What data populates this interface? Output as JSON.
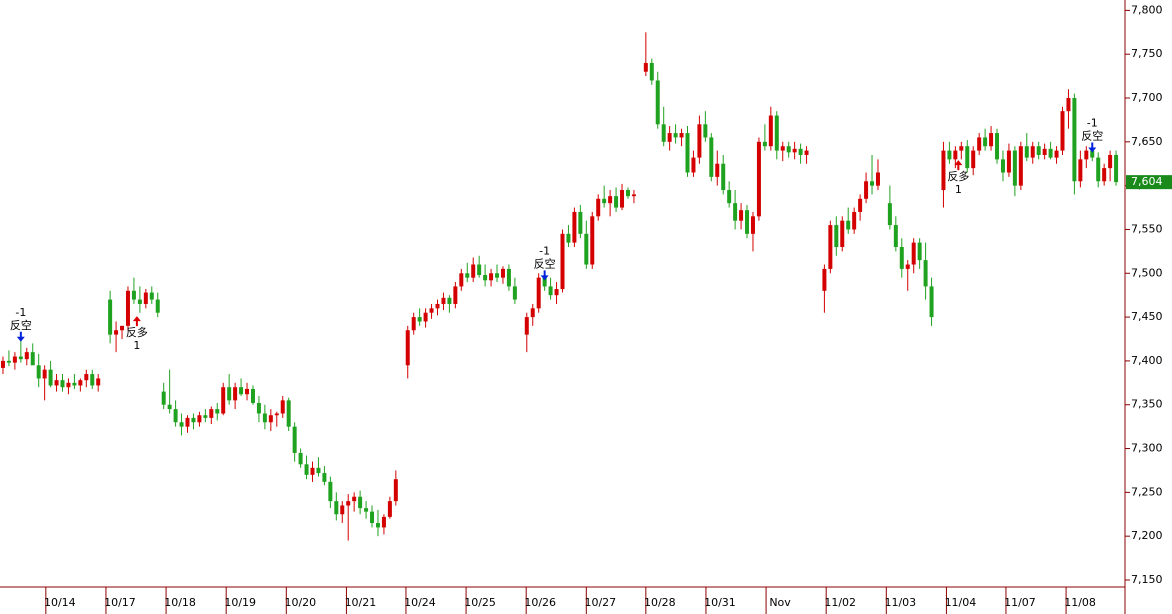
{
  "chart_data": {
    "type": "candlestick",
    "up_color": "#d40000",
    "down_color": "#1fa21f",
    "axis_color": "#8b0000",
    "last_color": "#1a8a1a",
    "ylim": [
      7142,
      7805
    ],
    "xlim": [
      -0.5,
      188.5
    ],
    "yticks": [
      {
        "value": 7150,
        "label": "7,150"
      },
      {
        "value": 7200,
        "label": "7,200"
      },
      {
        "value": 7250,
        "label": "7,250"
      },
      {
        "value": 7300,
        "label": "7,300"
      },
      {
        "value": 7350,
        "label": "7,350"
      },
      {
        "value": 7400,
        "label": "7,400"
      },
      {
        "value": 7450,
        "label": "7,450"
      },
      {
        "value": 7500,
        "label": "7,500"
      },
      {
        "value": 7550,
        "label": "7,550"
      },
      {
        "value": 7600,
        "label": "7,600"
      },
      {
        "value": 7650,
        "label": "7,650"
      },
      {
        "value": 7700,
        "label": "7,700"
      },
      {
        "value": 7750,
        "label": "7,750"
      },
      {
        "value": 7800,
        "label": "7,800"
      }
    ],
    "xticks": [
      {
        "value": 7.2,
        "label": "10/14"
      },
      {
        "value": 17.3,
        "label": "10/17"
      },
      {
        "value": 27.4,
        "label": "10/18"
      },
      {
        "value": 37.5,
        "label": "10/19"
      },
      {
        "value": 47.6,
        "label": "10/20"
      },
      {
        "value": 57.7,
        "label": "10/21"
      },
      {
        "value": 67.7,
        "label": "10/24"
      },
      {
        "value": 77.8,
        "label": "10/25"
      },
      {
        "value": 87.9,
        "label": "10/26"
      },
      {
        "value": 98,
        "label": "10/27"
      },
      {
        "value": 108,
        "label": "10/28"
      },
      {
        "value": 118.1,
        "label": "10/31"
      },
      {
        "value": 128.2,
        "label": "Nov"
      },
      {
        "value": 138.3,
        "label": "11/02"
      },
      {
        "value": 148.4,
        "label": "11/03"
      },
      {
        "value": 158.5,
        "label": "11/04"
      },
      {
        "value": 168.5,
        "label": "11/07"
      },
      {
        "value": 178.6,
        "label": "11/08"
      }
    ],
    "last": {
      "value": 7604,
      "label": "7,604"
    },
    "signals": [
      {
        "x": 3,
        "at": 7423,
        "dir": "short",
        "label": "-1",
        "text": "反空"
      },
      {
        "x": 22.5,
        "at": 7450,
        "dir": "long",
        "label": "1",
        "text": "反多"
      },
      {
        "x": 91,
        "at": 7493,
        "dir": "short",
        "label": "-1",
        "text": "反空"
      },
      {
        "x": 160.5,
        "at": 7628,
        "dir": "long",
        "label": "1",
        "text": "反多"
      },
      {
        "x": 183,
        "at": 7639,
        "dir": "short",
        "label": "-1",
        "text": "反空"
      }
    ],
    "candles": [
      [
        0,
        7392,
        7405,
        7385,
        7400
      ],
      [
        1,
        7400,
        7412,
        7394,
        7398
      ],
      [
        2,
        7398,
        7410,
        7390,
        7405
      ],
      [
        3,
        7405,
        7425,
        7398,
        7402
      ],
      [
        4,
        7402,
        7415,
        7395,
        7410
      ],
      [
        5,
        7410,
        7420,
        7400,
        7395
      ],
      [
        6,
        7395,
        7408,
        7370,
        7380
      ],
      [
        7,
        7380,
        7395,
        7355,
        7390
      ],
      [
        8,
        7390,
        7400,
        7370,
        7372
      ],
      [
        9,
        7372,
        7385,
        7365,
        7378
      ],
      [
        10,
        7378,
        7385,
        7365,
        7370
      ],
      [
        11,
        7370,
        7380,
        7362,
        7375
      ],
      [
        12,
        7375,
        7385,
        7368,
        7372
      ],
      [
        13,
        7372,
        7380,
        7365,
        7378
      ],
      [
        14,
        7378,
        7390,
        7370,
        7385
      ],
      [
        15,
        7385,
        7390,
        7368,
        7372
      ],
      [
        16,
        7372,
        7385,
        7365,
        7380
      ],
      [
        18,
        7470,
        7480,
        7420,
        7430
      ],
      [
        19,
        7430,
        7445,
        7410,
        7435
      ],
      [
        20,
        7435,
        7440,
        7425,
        7440
      ],
      [
        21,
        7440,
        7485,
        7435,
        7480
      ],
      [
        22,
        7480,
        7495,
        7465,
        7470
      ],
      [
        23,
        7470,
        7485,
        7455,
        7465
      ],
      [
        24,
        7465,
        7482,
        7460,
        7478
      ],
      [
        25,
        7478,
        7485,
        7465,
        7470
      ],
      [
        26,
        7470,
        7478,
        7450,
        7455
      ],
      [
        27,
        7365,
        7375,
        7345,
        7350
      ],
      [
        28,
        7350,
        7390,
        7340,
        7345
      ],
      [
        29,
        7345,
        7355,
        7325,
        7330
      ],
      [
        30,
        7330,
        7340,
        7315,
        7325
      ],
      [
        31,
        7325,
        7338,
        7318,
        7335
      ],
      [
        32,
        7335,
        7340,
        7322,
        7330
      ],
      [
        33,
        7330,
        7342,
        7325,
        7338
      ],
      [
        34,
        7338,
        7345,
        7330,
        7335
      ],
      [
        35,
        7335,
        7348,
        7328,
        7345
      ],
      [
        36,
        7345,
        7352,
        7332,
        7340
      ],
      [
        37,
        7340,
        7375,
        7338,
        7370
      ],
      [
        38,
        7370,
        7385,
        7350,
        7355
      ],
      [
        39,
        7355,
        7375,
        7345,
        7370
      ],
      [
        40,
        7370,
        7380,
        7360,
        7362
      ],
      [
        41,
        7362,
        7375,
        7355,
        7368
      ],
      [
        42,
        7368,
        7372,
        7350,
        7352
      ],
      [
        43,
        7352,
        7360,
        7330,
        7340
      ],
      [
        44,
        7340,
        7350,
        7322,
        7330
      ],
      [
        45,
        7330,
        7345,
        7320,
        7338
      ],
      [
        46,
        7338,
        7342,
        7325,
        7340
      ],
      [
        47,
        7340,
        7360,
        7335,
        7355
      ],
      [
        48,
        7355,
        7358,
        7320,
        7325
      ],
      [
        49,
        7325,
        7330,
        7285,
        7295
      ],
      [
        50,
        7295,
        7300,
        7278,
        7282
      ],
      [
        51,
        7282,
        7292,
        7265,
        7270
      ],
      [
        52,
        7270,
        7285,
        7262,
        7278
      ],
      [
        53,
        7278,
        7290,
        7268,
        7272
      ],
      [
        54,
        7272,
        7280,
        7258,
        7262
      ],
      [
        55,
        7262,
        7268,
        7232,
        7240
      ],
      [
        56,
        7240,
        7250,
        7218,
        7225
      ],
      [
        57,
        7225,
        7240,
        7215,
        7235
      ],
      [
        58,
        7235,
        7248,
        7195,
        7240
      ],
      [
        59,
        7240,
        7250,
        7228,
        7245
      ],
      [
        60,
        7245,
        7252,
        7225,
        7232
      ],
      [
        61,
        7232,
        7240,
        7220,
        7228
      ],
      [
        62,
        7228,
        7235,
        7210,
        7215
      ],
      [
        63,
        7215,
        7230,
        7200,
        7210
      ],
      [
        64,
        7210,
        7225,
        7202,
        7222
      ],
      [
        65,
        7222,
        7245,
        7220,
        7240
      ],
      [
        66,
        7240,
        7275,
        7235,
        7265
      ],
      [
        68,
        7395,
        7440,
        7380,
        7435
      ],
      [
        69,
        7435,
        7455,
        7430,
        7450
      ],
      [
        70,
        7450,
        7460,
        7440,
        7445
      ],
      [
        71,
        7445,
        7460,
        7438,
        7455
      ],
      [
        72,
        7455,
        7465,
        7448,
        7460
      ],
      [
        73,
        7460,
        7470,
        7452,
        7465
      ],
      [
        74,
        7465,
        7478,
        7458,
        7472
      ],
      [
        75,
        7472,
        7475,
        7455,
        7465
      ],
      [
        76,
        7465,
        7490,
        7460,
        7485
      ],
      [
        77,
        7485,
        7505,
        7480,
        7500
      ],
      [
        78,
        7500,
        7512,
        7490,
        7495
      ],
      [
        79,
        7495,
        7518,
        7490,
        7510
      ],
      [
        80,
        7510,
        7520,
        7495,
        7498
      ],
      [
        81,
        7498,
        7510,
        7485,
        7492
      ],
      [
        82,
        7492,
        7505,
        7485,
        7500
      ],
      [
        83,
        7500,
        7510,
        7490,
        7495
      ],
      [
        84,
        7495,
        7508,
        7488,
        7505
      ],
      [
        85,
        7505,
        7510,
        7480,
        7485
      ],
      [
        86,
        7485,
        7495,
        7465,
        7470
      ],
      [
        88,
        7430,
        7455,
        7410,
        7450
      ],
      [
        89,
        7450,
        7465,
        7440,
        7460
      ],
      [
        90,
        7460,
        7500,
        7455,
        7495
      ],
      [
        91,
        7495,
        7500,
        7480,
        7485
      ],
      [
        92,
        7485,
        7495,
        7470,
        7475
      ],
      [
        93,
        7475,
        7490,
        7465,
        7482
      ],
      [
        94,
        7482,
        7550,
        7478,
        7545
      ],
      [
        95,
        7545,
        7555,
        7530,
        7535
      ],
      [
        96,
        7535,
        7575,
        7530,
        7570
      ],
      [
        97,
        7570,
        7578,
        7540,
        7545
      ],
      [
        98,
        7545,
        7560,
        7505,
        7510
      ],
      [
        99,
        7510,
        7570,
        7505,
        7565
      ],
      [
        100,
        7565,
        7590,
        7560,
        7585
      ],
      [
        101,
        7585,
        7600,
        7575,
        7580
      ],
      [
        102,
        7580,
        7595,
        7565,
        7588
      ],
      [
        103,
        7588,
        7598,
        7570,
        7575
      ],
      [
        104,
        7575,
        7602,
        7572,
        7595
      ],
      [
        105,
        7595,
        7598,
        7585,
        7588
      ],
      [
        106,
        7588,
        7595,
        7580,
        7590
      ],
      [
        108,
        7730,
        7775,
        7725,
        7740
      ],
      [
        109,
        7740,
        7745,
        7715,
        7720
      ],
      [
        110,
        7720,
        7730,
        7665,
        7670
      ],
      [
        111,
        7670,
        7690,
        7645,
        7650
      ],
      [
        112,
        7650,
        7668,
        7640,
        7660
      ],
      [
        113,
        7660,
        7670,
        7648,
        7655
      ],
      [
        114,
        7655,
        7665,
        7645,
        7660
      ],
      [
        115,
        7660,
        7668,
        7610,
        7615
      ],
      [
        116,
        7615,
        7640,
        7610,
        7632
      ],
      [
        117,
        7632,
        7680,
        7625,
        7670
      ],
      [
        118,
        7670,
        7685,
        7650,
        7655
      ],
      [
        119,
        7655,
        7660,
        7605,
        7610
      ],
      [
        120,
        7610,
        7640,
        7600,
        7625
      ],
      [
        121,
        7625,
        7635,
        7590,
        7595
      ],
      [
        122,
        7595,
        7605,
        7575,
        7580
      ],
      [
        123,
        7580,
        7595,
        7550,
        7560
      ],
      [
        124,
        7560,
        7580,
        7550,
        7572
      ],
      [
        125,
        7572,
        7578,
        7540,
        7545
      ],
      [
        126,
        7545,
        7570,
        7525,
        7565
      ],
      [
        127,
        7565,
        7655,
        7560,
        7650
      ],
      [
        128,
        7650,
        7670,
        7640,
        7645
      ],
      [
        129,
        7645,
        7690,
        7640,
        7680
      ],
      [
        130,
        7680,
        7685,
        7630,
        7640
      ],
      [
        131,
        7640,
        7650,
        7628,
        7645
      ],
      [
        132,
        7645,
        7650,
        7632,
        7638
      ],
      [
        133,
        7638,
        7650,
        7630,
        7642
      ],
      [
        134,
        7642,
        7648,
        7625,
        7635
      ],
      [
        135,
        7635,
        7645,
        7625,
        7640
      ],
      [
        138,
        7480,
        7510,
        7455,
        7505
      ],
      [
        139,
        7505,
        7560,
        7500,
        7555
      ],
      [
        140,
        7555,
        7565,
        7520,
        7530
      ],
      [
        141,
        7530,
        7565,
        7525,
        7560
      ],
      [
        142,
        7560,
        7575,
        7545,
        7550
      ],
      [
        143,
        7550,
        7575,
        7545,
        7570
      ],
      [
        144,
        7570,
        7590,
        7560,
        7585
      ],
      [
        145,
        7585,
        7615,
        7580,
        7605
      ],
      [
        146,
        7605,
        7635,
        7590,
        7600
      ],
      [
        147,
        7600,
        7630,
        7595,
        7615
      ],
      [
        149,
        7580,
        7600,
        7550,
        7555
      ],
      [
        150,
        7555,
        7565,
        7525,
        7530
      ],
      [
        151,
        7530,
        7540,
        7495,
        7505
      ],
      [
        152,
        7505,
        7515,
        7480,
        7510
      ],
      [
        153,
        7510,
        7540,
        7500,
        7535
      ],
      [
        154,
        7535,
        7540,
        7505,
        7515
      ],
      [
        155,
        7515,
        7535,
        7470,
        7485
      ],
      [
        156,
        7485,
        7495,
        7440,
        7450
      ],
      [
        158,
        7595,
        7650,
        7575,
        7640
      ],
      [
        159,
        7640,
        7650,
        7625,
        7630
      ],
      [
        160,
        7630,
        7645,
        7620,
        7640
      ],
      [
        161,
        7640,
        7650,
        7630,
        7645
      ],
      [
        162,
        7645,
        7652,
        7615,
        7620
      ],
      [
        163,
        7620,
        7645,
        7612,
        7640
      ],
      [
        164,
        7640,
        7660,
        7635,
        7655
      ],
      [
        165,
        7655,
        7665,
        7640,
        7645
      ],
      [
        166,
        7645,
        7668,
        7640,
        7660
      ],
      [
        167,
        7660,
        7665,
        7625,
        7630
      ],
      [
        168,
        7630,
        7640,
        7605,
        7615
      ],
      [
        169,
        7615,
        7648,
        7610,
        7640
      ],
      [
        170,
        7640,
        7645,
        7588,
        7600
      ],
      [
        171,
        7600,
        7650,
        7595,
        7645
      ],
      [
        172,
        7645,
        7660,
        7628,
        7632
      ],
      [
        173,
        7632,
        7650,
        7625,
        7645
      ],
      [
        174,
        7645,
        7650,
        7630,
        7635
      ],
      [
        175,
        7635,
        7648,
        7630,
        7642
      ],
      [
        176,
        7642,
        7650,
        7630,
        7632
      ],
      [
        177,
        7632,
        7645,
        7625,
        7640
      ],
      [
        178,
        7640,
        7690,
        7635,
        7685
      ],
      [
        179,
        7685,
        7710,
        7665,
        7700
      ],
      [
        180,
        7700,
        7705,
        7590,
        7605
      ],
      [
        181,
        7605,
        7640,
        7598,
        7630
      ],
      [
        182,
        7630,
        7645,
        7620,
        7640
      ],
      [
        183,
        7640,
        7645,
        7628,
        7632
      ],
      [
        184,
        7632,
        7638,
        7598,
        7605
      ],
      [
        185,
        7605,
        7625,
        7600,
        7620
      ],
      [
        186,
        7620,
        7640,
        7605,
        7635
      ],
      [
        187,
        7635,
        7640,
        7600,
        7604
      ]
    ]
  }
}
